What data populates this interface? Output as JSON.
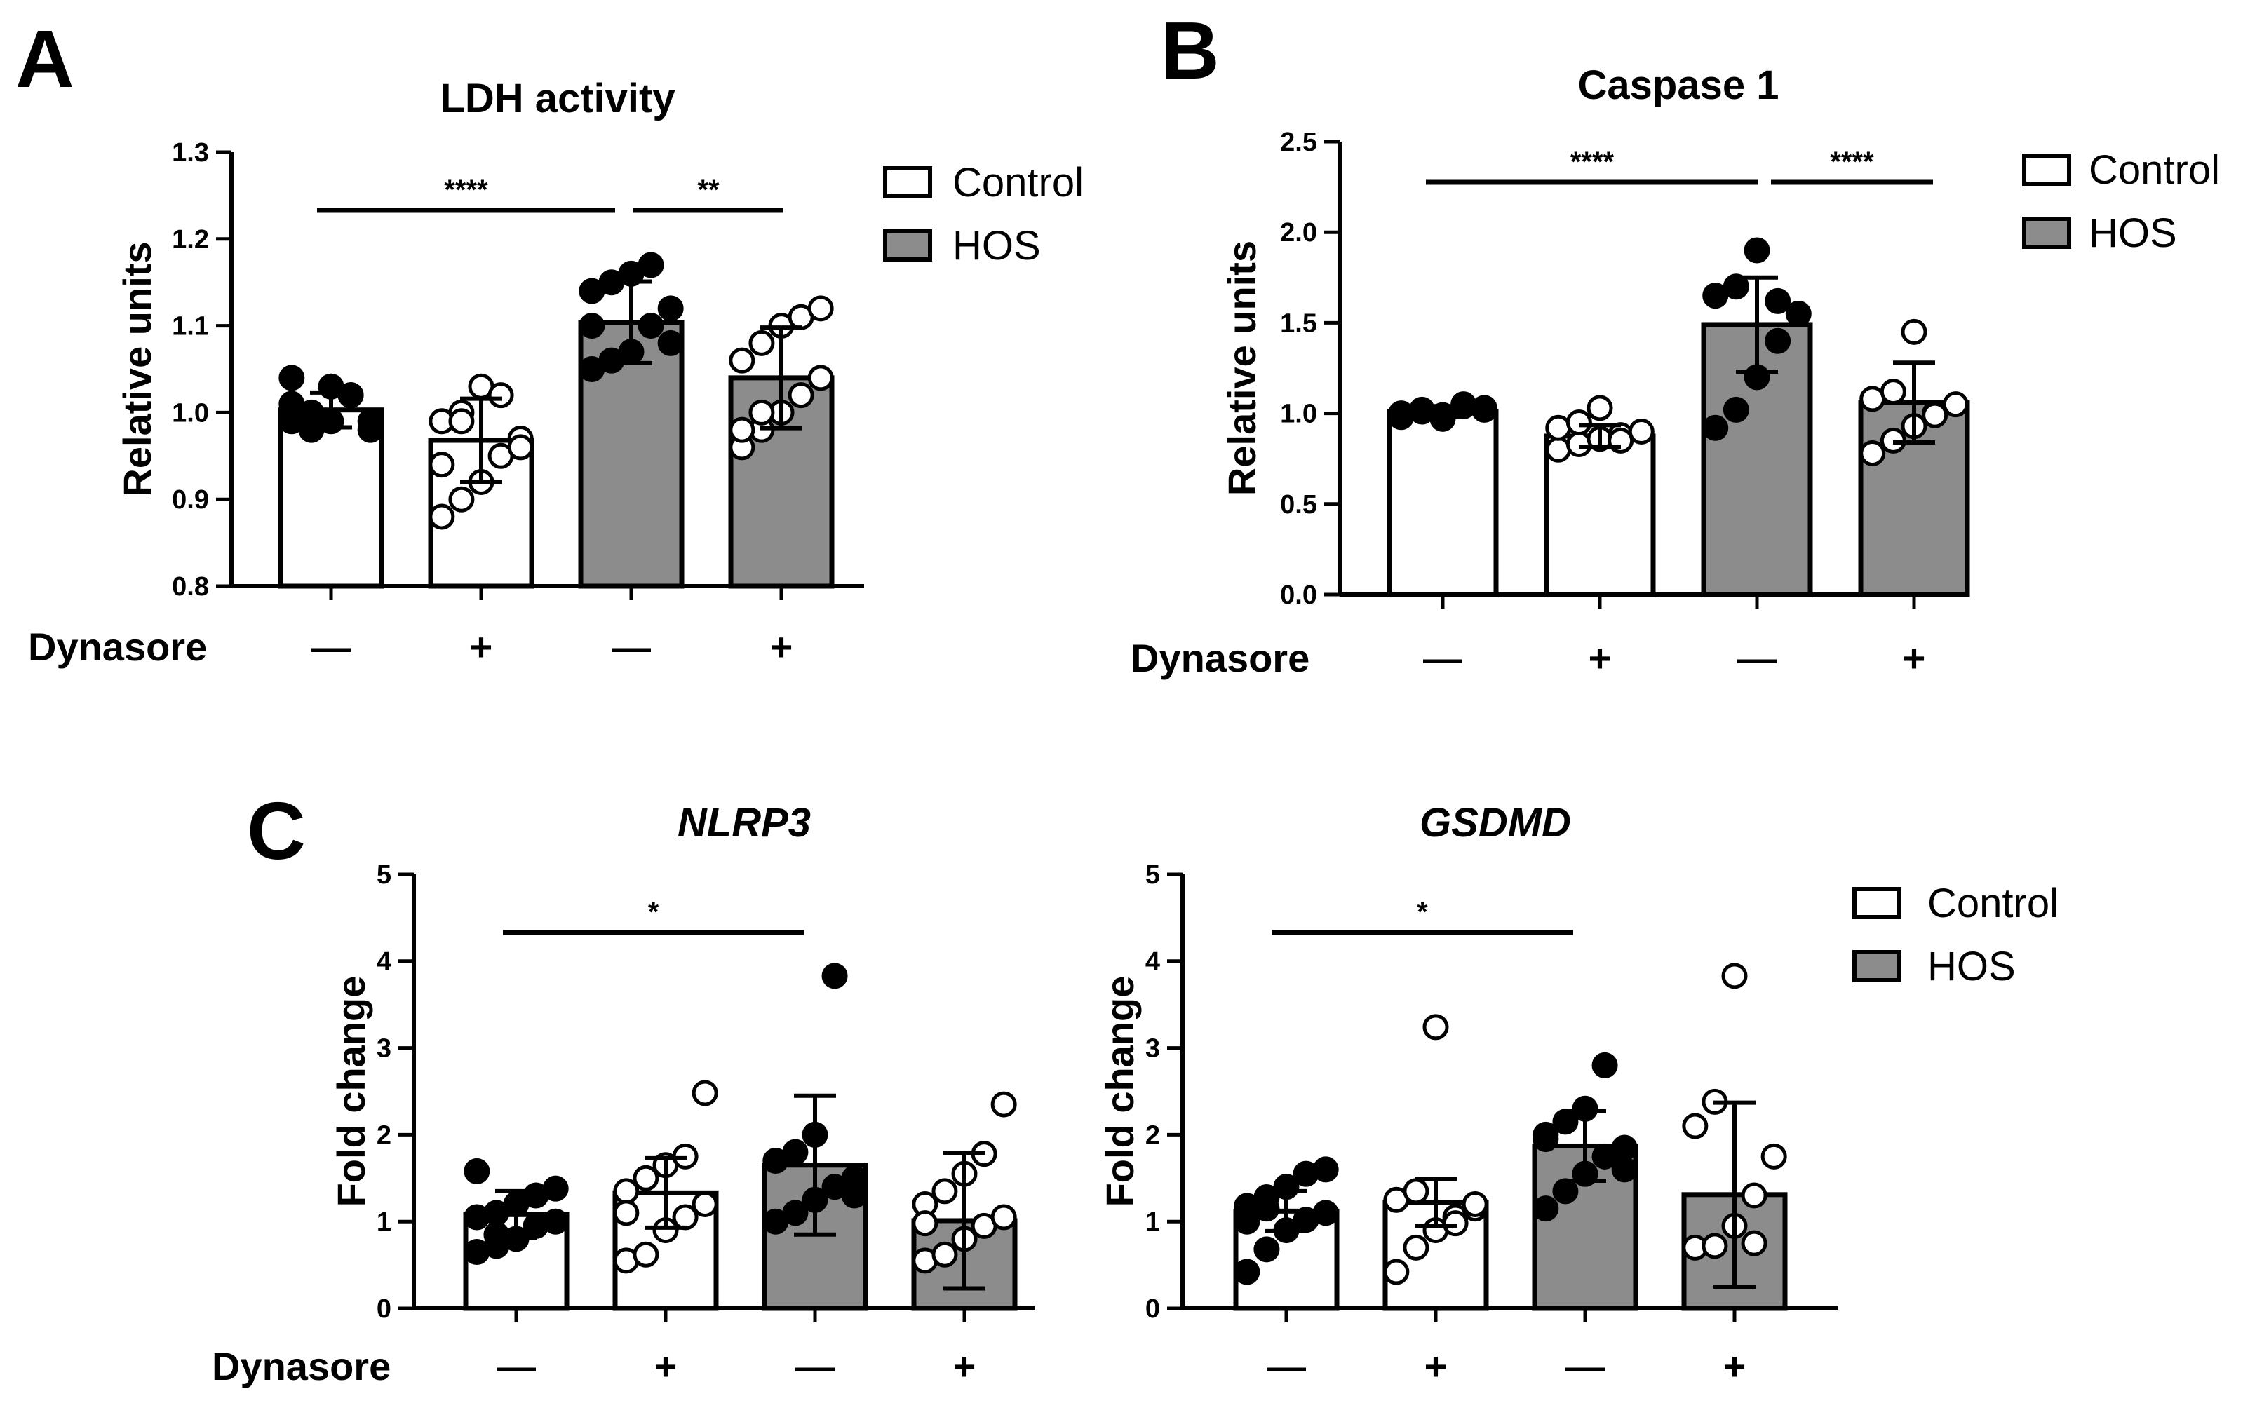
{
  "legend": {
    "control": "Control",
    "hos": "HOS"
  },
  "dynasore_label": "Dynasore",
  "dynasore_signs": [
    "—",
    "+",
    "—",
    "+"
  ],
  "colors": {
    "control_fill": "#ffffff",
    "hos_fill": "#8c8c8c",
    "axis": "#000000"
  },
  "chart_data": [
    {
      "panel": "A",
      "type": "bar",
      "title": "LDH activity",
      "ylabel": "Relative units",
      "ylim": [
        0.8,
        1.3
      ],
      "yticks": [
        "0.8",
        "0.9",
        "1.0",
        "1.1",
        "1.2",
        "1.3"
      ],
      "categories": [
        "Control −",
        "Control +",
        "HOS −",
        "HOS +"
      ],
      "values": [
        1.003,
        0.968,
        1.104,
        1.04
      ],
      "sd": [
        0.02,
        0.048,
        0.047,
        0.058
      ],
      "points": [
        [
          0.99,
          1.0,
          1.03,
          1.02,
          0.98,
          1.01,
          1.0,
          0.99,
          1.02,
          0.99,
          1.04,
          0.98
        ],
        [
          0.88,
          0.9,
          0.92,
          0.95,
          0.97,
          0.99,
          1.0,
          1.03,
          1.02,
          0.96,
          0.94,
          0.99
        ],
        [
          1.05,
          1.06,
          1.07,
          1.1,
          1.12,
          1.14,
          1.15,
          1.16,
          1.17,
          1.08,
          1.1
        ],
        [
          0.96,
          0.98,
          1.0,
          1.02,
          1.04,
          1.06,
          1.08,
          1.1,
          1.11,
          1.12,
          0.98,
          1.0
        ]
      ],
      "significance": [
        {
          "from": 0,
          "to": 2,
          "label": "****"
        },
        {
          "from": 2,
          "to": 3,
          "label": "**"
        }
      ]
    },
    {
      "panel": "B",
      "type": "bar",
      "title": "Caspase 1",
      "ylabel": "Relative units",
      "ylim": [
        0,
        2.5
      ],
      "yticks": [
        "0.0",
        "0.5",
        "1.0",
        "1.5",
        "2.0",
        "2.5"
      ],
      "categories": [
        "Control −",
        "Control +",
        "HOS −",
        "HOS +"
      ],
      "values": [
        1.01,
        0.875,
        1.49,
        1.06
      ],
      "sd": [
        0.03,
        0.06,
        0.26,
        0.22
      ],
      "points": [
        [
          1.0,
          1.02,
          0.97,
          1.04,
          1.03,
          0.98,
          1.01,
          0.99,
          1.05,
          1.02
        ],
        [
          0.8,
          0.83,
          0.86,
          0.88,
          0.9,
          0.92,
          0.95,
          1.03,
          0.85
        ],
        [
          0.92,
          1.02,
          1.2,
          1.4,
          1.55,
          1.65,
          1.7,
          1.9,
          1.62
        ],
        [
          0.78,
          0.85,
          0.93,
          1.0,
          1.05,
          1.08,
          1.12,
          1.45,
          0.99
        ]
      ],
      "significance": [
        {
          "from": 0,
          "to": 2,
          "label": "****"
        },
        {
          "from": 2,
          "to": 3,
          "label": "****"
        }
      ]
    },
    {
      "panel": "C",
      "type": "bar",
      "title": "NLRP3",
      "ylabel": "Fold change",
      "ylim": [
        0,
        5
      ],
      "yticks": [
        "0",
        "1",
        "2",
        "3",
        "4",
        "5"
      ],
      "categories": [
        "Control −",
        "Control +",
        "HOS −",
        "HOS +"
      ],
      "values": [
        1.08,
        1.33,
        1.65,
        1.01
      ],
      "sd": [
        0.27,
        0.4,
        0.8,
        0.78
      ],
      "points": [
        [
          0.65,
          0.72,
          0.8,
          0.95,
          1.0,
          1.05,
          1.1,
          1.2,
          1.3,
          1.38,
          1.58,
          0.85
        ],
        [
          0.55,
          0.62,
          0.9,
          1.05,
          1.2,
          1.35,
          1.5,
          1.65,
          1.75,
          2.48,
          1.1
        ],
        [
          1.0,
          1.1,
          1.25,
          1.4,
          1.5,
          1.7,
          1.8,
          2.0,
          3.83,
          1.3
        ],
        [
          0.55,
          0.62,
          0.8,
          0.95,
          1.05,
          1.2,
          1.35,
          1.55,
          1.78,
          2.35,
          0.98
        ]
      ],
      "significance": [
        {
          "from": 0,
          "to": 2,
          "label": "*"
        }
      ]
    },
    {
      "panel": "C2",
      "type": "bar",
      "title": "GSDMD",
      "ylabel": "Fold change",
      "ylim": [
        0,
        5
      ],
      "yticks": [
        "0",
        "1",
        "2",
        "3",
        "4",
        "5"
      ],
      "categories": [
        "Control −",
        "Control +",
        "HOS −",
        "HOS +"
      ],
      "values": [
        1.12,
        1.22,
        1.87,
        1.31
      ],
      "sd": [
        0.23,
        0.27,
        0.4,
        1.06
      ],
      "points": [
        [
          0.42,
          0.68,
          0.9,
          1.02,
          1.1,
          1.18,
          1.28,
          1.4,
          1.55,
          1.6,
          1.0,
          1.15
        ],
        [
          0.42,
          0.7,
          0.9,
          1.05,
          1.15,
          1.25,
          1.35,
          3.24,
          0.98,
          1.2
        ],
        [
          1.15,
          1.35,
          1.55,
          1.75,
          1.85,
          2.0,
          2.15,
          2.3,
          2.8,
          1.6,
          1.95
        ],
        [
          0.7,
          0.72,
          0.95,
          1.3,
          1.75,
          2.1,
          2.38,
          3.83,
          0.75
        ]
      ],
      "significance": [
        {
          "from": 0,
          "to": 2,
          "label": "*"
        }
      ]
    }
  ]
}
